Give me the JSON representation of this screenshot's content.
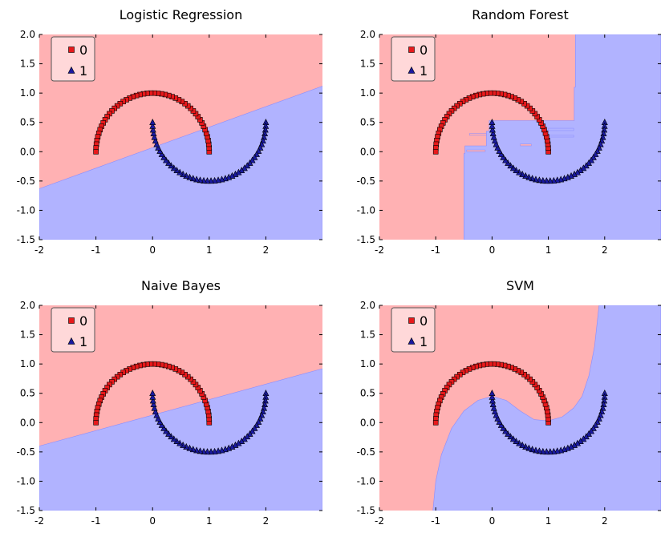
{
  "colors": {
    "class0_region": "#ffb1b3",
    "class1_region": "#b1b3ff",
    "class0_marker": "#e8191b",
    "class1_marker": "#1a1aa0",
    "marker_edge": "#000000",
    "legend_bg": "#ffffff"
  },
  "chart_data": [
    {
      "type": "scatter",
      "title": "Logistic Regression",
      "xlim": [
        -2,
        3
      ],
      "ylim": [
        -1.5,
        2.0
      ],
      "xticks": [
        "-2",
        "-1",
        "0",
        "1",
        "2"
      ],
      "yticks": [
        "-1.5",
        "-1.0",
        "-0.5",
        "0.0",
        "0.5",
        "1.0",
        "1.5",
        "2.0"
      ],
      "legend": {
        "placement": "top-left",
        "entries": [
          "0",
          "1"
        ]
      },
      "background": "decision-regions",
      "boundary": "linear",
      "boundary_line": [
        [
          -2,
          -0.63
        ],
        [
          3,
          1.12
        ]
      ],
      "series": [
        {
          "name": "0",
          "marker": "square",
          "shape": "upper-half-circle",
          "center": [
            0,
            0
          ],
          "radius": 1,
          "points": 50
        },
        {
          "name": "1",
          "marker": "triangle",
          "shape": "lower-half-circle",
          "center": [
            1,
            0.5
          ],
          "radius": 1,
          "points": 50
        }
      ]
    },
    {
      "type": "scatter",
      "title": "Random Forest",
      "xlim": [
        -2,
        3
      ],
      "ylim": [
        -1.5,
        2.0
      ],
      "xticks": [
        "-2",
        "-1",
        "0",
        "1",
        "2"
      ],
      "yticks": [
        "-1.5",
        "-1.0",
        "-0.5",
        "0.0",
        "0.5",
        "1.0",
        "1.5",
        "2.0"
      ],
      "legend": {
        "placement": "top-left",
        "entries": [
          "0",
          "1"
        ]
      },
      "background": "decision-regions",
      "boundary": "axis-aligned",
      "class1_region_outline": [
        [
          -0.5,
          -1.5
        ],
        [
          -0.5,
          -0.03
        ],
        [
          -0.48,
          -0.03
        ],
        [
          -0.48,
          0.1
        ],
        [
          -0.1,
          0.1
        ],
        [
          -0.1,
          0.35
        ],
        [
          -0.05,
          0.35
        ],
        [
          -0.05,
          0.53
        ],
        [
          1.46,
          0.53
        ],
        [
          1.46,
          1.1
        ],
        [
          1.48,
          1.1
        ],
        [
          1.48,
          2.0
        ],
        [
          3.0,
          2.0
        ],
        [
          3.0,
          -1.5
        ]
      ],
      "series": [
        {
          "name": "0",
          "marker": "square",
          "shape": "upper-half-circle",
          "center": [
            0,
            0
          ],
          "radius": 1,
          "points": 50
        },
        {
          "name": "1",
          "marker": "triangle",
          "shape": "lower-half-circle",
          "center": [
            1,
            0.5
          ],
          "radius": 1,
          "points": 50
        }
      ]
    },
    {
      "type": "scatter",
      "title": "Naive Bayes",
      "xlim": [
        -2,
        3
      ],
      "ylim": [
        -1.5,
        2.0
      ],
      "xticks": [
        "-2",
        "-1",
        "0",
        "1",
        "2"
      ],
      "yticks": [
        "-1.5",
        "-1.0",
        "-0.5",
        "0.0",
        "0.5",
        "1.0",
        "1.5",
        "2.0"
      ],
      "legend": {
        "placement": "top-left",
        "entries": [
          "0",
          "1"
        ]
      },
      "background": "decision-regions",
      "boundary": "linear",
      "boundary_line": [
        [
          -2,
          -0.4
        ],
        [
          3,
          0.92
        ]
      ],
      "series": [
        {
          "name": "0",
          "marker": "square",
          "shape": "upper-half-circle",
          "center": [
            0,
            0
          ],
          "radius": 1,
          "points": 50
        },
        {
          "name": "1",
          "marker": "triangle",
          "shape": "lower-half-circle",
          "center": [
            1,
            0.5
          ],
          "radius": 1,
          "points": 50
        }
      ]
    },
    {
      "type": "scatter",
      "title": "SVM",
      "xlim": [
        -2,
        3
      ],
      "ylim": [
        -1.5,
        2.0
      ],
      "xticks": [
        "-2",
        "-1",
        "0",
        "1",
        "2"
      ],
      "yticks": [
        "-1.5",
        "-1.0",
        "-0.5",
        "0.0",
        "0.5",
        "1.0",
        "1.5",
        "2.0"
      ],
      "legend": {
        "placement": "top-left",
        "entries": [
          "0",
          "1"
        ]
      },
      "background": "decision-regions",
      "boundary": "curved",
      "boundary_curve": [
        [
          -1.05,
          -1.5
        ],
        [
          -1.0,
          -1.0
        ],
        [
          -0.9,
          -0.55
        ],
        [
          -0.72,
          -0.1
        ],
        [
          -0.5,
          0.2
        ],
        [
          -0.25,
          0.38
        ],
        [
          0,
          0.45
        ],
        [
          0.25,
          0.38
        ],
        [
          0.5,
          0.2
        ],
        [
          0.75,
          0.05
        ],
        [
          1.0,
          0.03
        ],
        [
          1.25,
          0.1
        ],
        [
          1.45,
          0.25
        ],
        [
          1.6,
          0.45
        ],
        [
          1.72,
          0.8
        ],
        [
          1.82,
          1.3
        ],
        [
          1.9,
          2.0
        ]
      ],
      "series": [
        {
          "name": "0",
          "marker": "square",
          "shape": "upper-half-circle",
          "center": [
            0,
            0
          ],
          "radius": 1,
          "points": 50
        },
        {
          "name": "1",
          "marker": "triangle",
          "shape": "lower-half-circle",
          "center": [
            1,
            0.5
          ],
          "radius": 1,
          "points": 50
        }
      ]
    }
  ]
}
